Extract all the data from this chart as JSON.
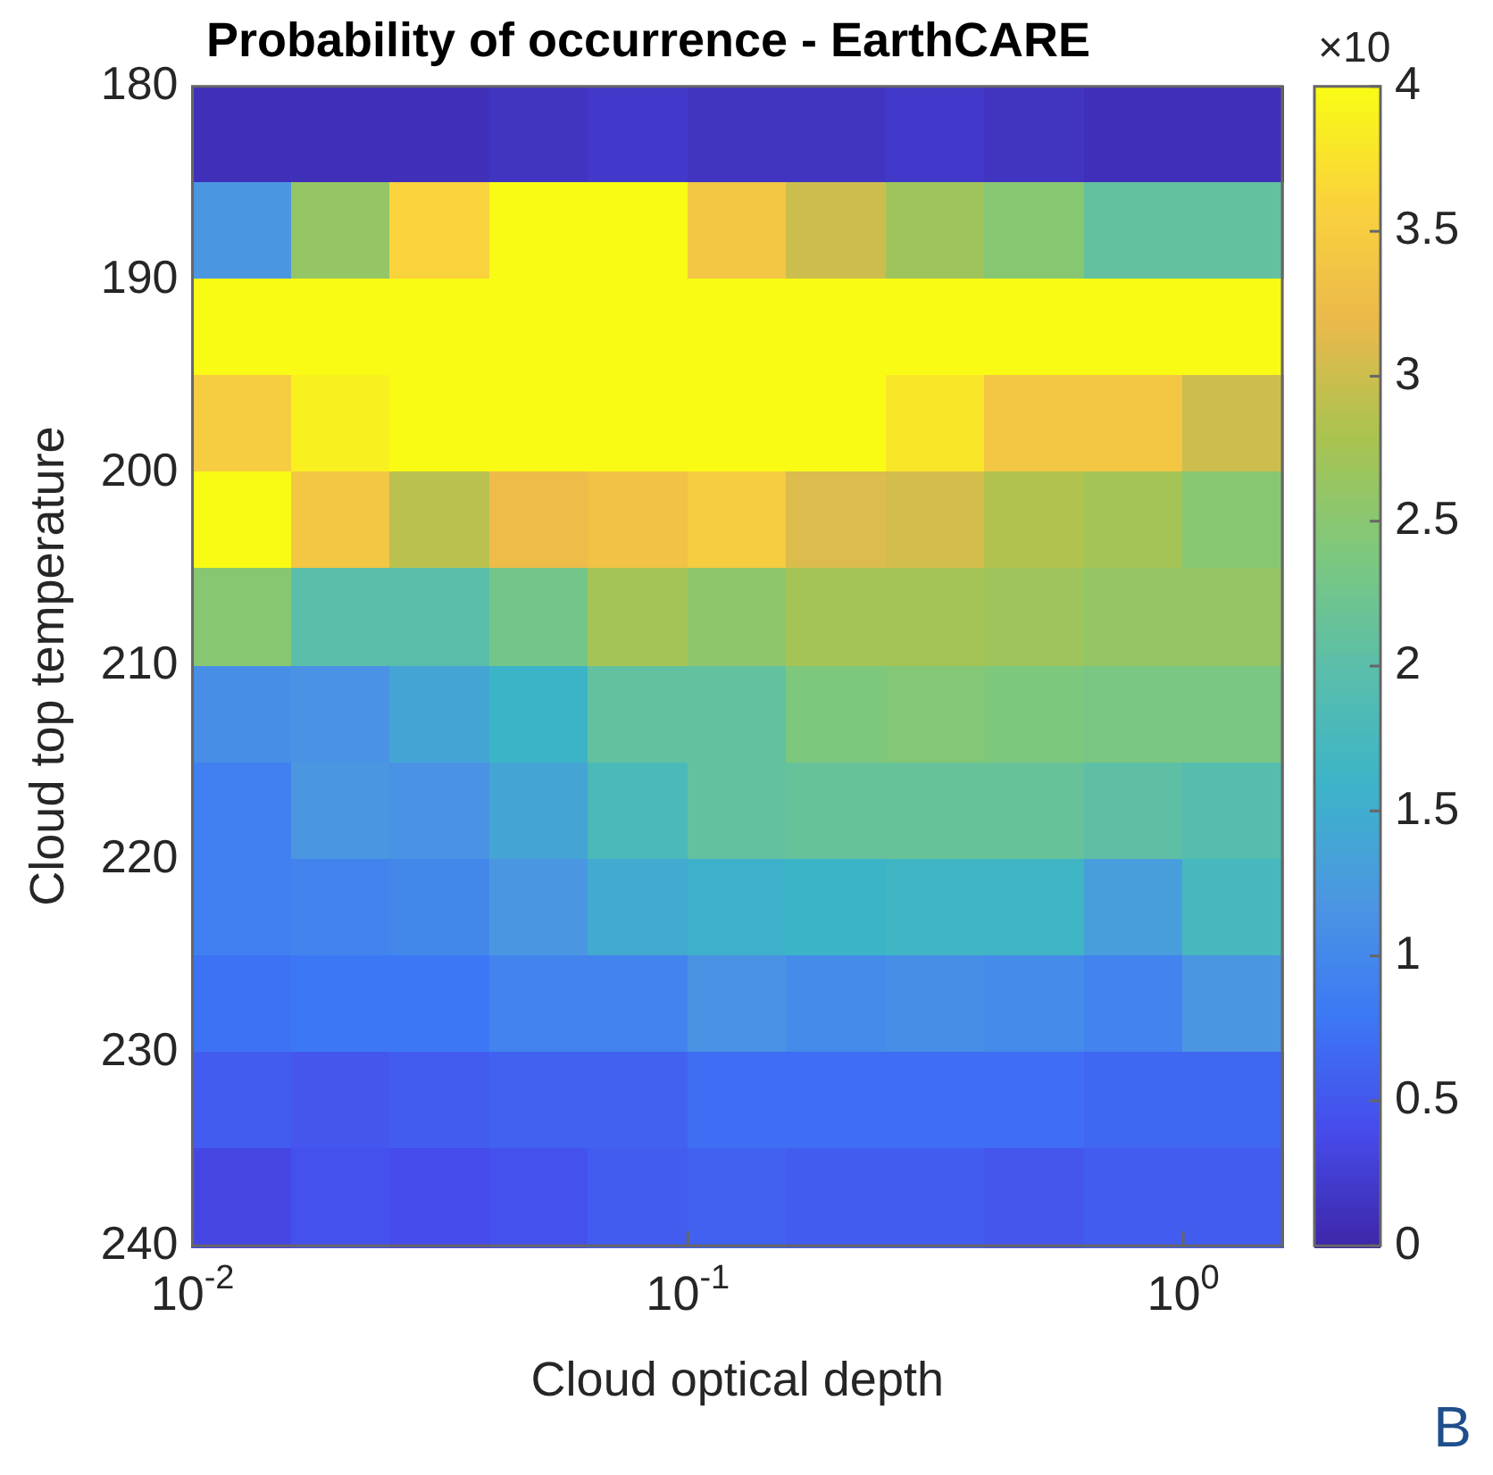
{
  "chart_data": {
    "type": "heatmap",
    "title": "Probability of occurrence - EarthCARE",
    "xlabel": "Cloud optical depth",
    "ylabel": "Cloud top temperature",
    "log": "x",
    "xlim": [
      0.01,
      1.585
    ],
    "xticks": [
      {
        "value": 0.01,
        "label": "10$^{-2}$"
      },
      {
        "value": 0.1,
        "label": "10$^{-1}$"
      },
      {
        "value": 1,
        "label": "10$^{0}$"
      }
    ],
    "ylim": [
      240,
      180
    ],
    "yticks": [
      180,
      190,
      200,
      210,
      220,
      230,
      240
    ],
    "clim": [
      0,
      4
    ],
    "cticks": [
      0,
      0.5,
      1,
      1.5,
      2,
      2.5,
      3,
      3.5,
      4
    ],
    "cells": [
      [
        0.1,
        0.1,
        0.1,
        0.15,
        0.2,
        0.15,
        0.15,
        0.2,
        0.15,
        0.1,
        0.1
      ],
      [
        1.2,
        2.6,
        3.6,
        4,
        4,
        3.4,
        3.0,
        2.7,
        2.5,
        2.1,
        2.1
      ],
      [
        4,
        4,
        4,
        4,
        4,
        4,
        4,
        4,
        4,
        4,
        4
      ],
      [
        3.5,
        3.9,
        4,
        4,
        4,
        4,
        4,
        3.8,
        3.4,
        3.4,
        3.0
      ],
      [
        4,
        3.4,
        2.9,
        3.25,
        3.35,
        3.5,
        3.1,
        3.05,
        2.85,
        2.75,
        2.5
      ],
      [
        2.5,
        2.0,
        2.0,
        2.3,
        2.75,
        2.55,
        2.75,
        2.75,
        2.7,
        2.6,
        2.6
      ],
      [
        1.1,
        1.15,
        1.4,
        1.6,
        2.1,
        2.1,
        2.4,
        2.45,
        2.4,
        2.35,
        2.35
      ],
      [
        0.9,
        1.2,
        1.15,
        1.4,
        1.8,
        2.1,
        2.15,
        2.15,
        2.15,
        2.05,
        1.95
      ],
      [
        0.9,
        0.95,
        1.0,
        1.2,
        1.45,
        1.55,
        1.6,
        1.65,
        1.65,
        1.3,
        1.75
      ],
      [
        0.75,
        0.8,
        0.8,
        0.95,
        0.95,
        1.15,
        1.05,
        1.1,
        1.05,
        0.95,
        1.2
      ],
      [
        0.55,
        0.5,
        0.55,
        0.6,
        0.6,
        0.7,
        0.7,
        0.7,
        0.7,
        0.65,
        0.65
      ],
      [
        0.35,
        0.45,
        0.4,
        0.45,
        0.55,
        0.6,
        0.55,
        0.55,
        0.5,
        0.55,
        0.55
      ]
    ],
    "annotations": [
      "×10",
      "B"
    ]
  }
}
